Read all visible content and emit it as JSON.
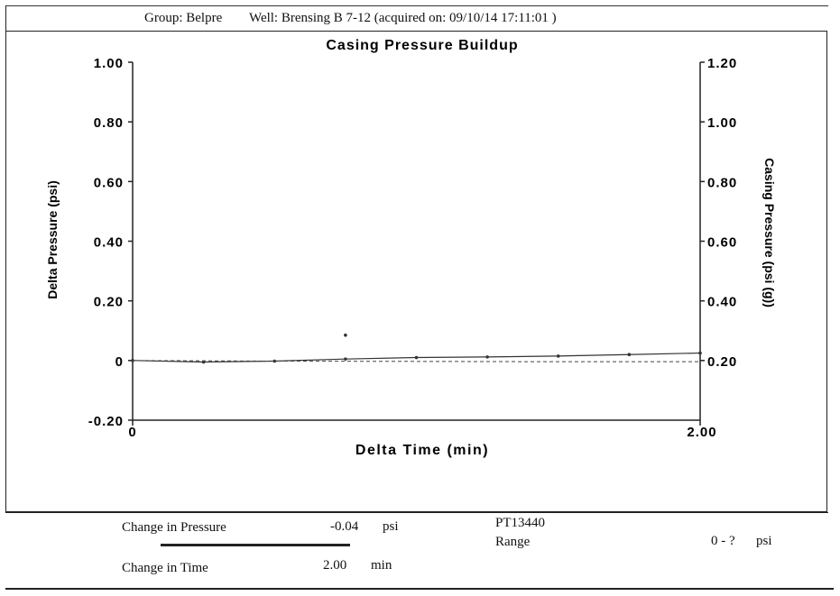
{
  "header": {
    "group": "Group: Belpre",
    "well": "Well: Brensing B 7-12 (acquired on: 09/10/14 17:11:01 )"
  },
  "chart_data": {
    "type": "line",
    "title": "Casing Pressure Buildup",
    "xlabel": "Delta Time (min)",
    "ylabel": "Delta Pressure (psi)",
    "y2label": "Casing Pressure (psi (g))",
    "xlim": [
      0,
      2.0
    ],
    "ylim": [
      -0.2,
      1.0
    ],
    "y2lim": [
      0.0,
      1.2
    ],
    "x_ticks": [
      "0",
      "2.00"
    ],
    "y_ticks": [
      "1.00",
      "0.80",
      "0.60",
      "0.40",
      "0.20",
      "0",
      "-0.20"
    ],
    "y2_ticks": [
      "1.20",
      "1.00",
      "0.80",
      "0.60",
      "0.40",
      "0.20"
    ],
    "grid": false,
    "series": [
      {
        "x": [
          0.0,
          0.25,
          0.5,
          0.75,
          1.0,
          1.25,
          1.5,
          1.75,
          2.0
        ],
        "values": [
          0.0,
          -0.005,
          -0.002,
          0.005,
          0.01,
          0.012,
          0.015,
          0.02,
          0.025
        ]
      },
      {
        "x": [
          0.0,
          0.5,
          1.0,
          1.5,
          2.0
        ],
        "values": [
          0.0,
          -0.002,
          -0.003,
          -0.004,
          -0.004
        ]
      }
    ],
    "scatter_points": [
      {
        "x": 0.75,
        "y": 0.085
      }
    ]
  },
  "info": {
    "change_pressure_label": "Change in Pressure",
    "change_pressure_value": "-0.04",
    "change_pressure_unit": "psi",
    "change_time_label": "Change in Time",
    "change_time_value": "2.00",
    "change_time_unit": "min",
    "sensor_id": "PT13440",
    "range_label": "Range",
    "range_value": "0 - ?",
    "range_unit": "psi"
  }
}
